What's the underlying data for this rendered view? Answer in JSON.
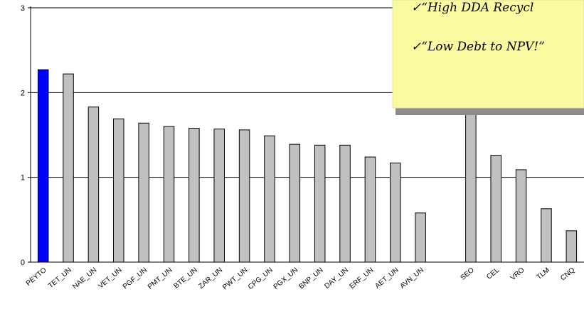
{
  "chart_data": {
    "type": "bar",
    "categories": [
      "PEYTO",
      "TET_UN",
      "NAE_UN",
      "VET_UN",
      "PGF_UN",
      "PMT_UN",
      "BTE_UN",
      "ZAR_UN",
      "PWT_UN",
      "CPG_UN",
      "PGX_UN",
      "BNP_UN",
      "DAY_UN",
      "ERF_UN",
      "AET_UN",
      "AVN_UN",
      "",
      "SEO",
      "CEL",
      "VRO",
      "TLM",
      "CNQ"
    ],
    "values": [
      2.27,
      2.22,
      1.83,
      1.69,
      1.64,
      1.6,
      1.58,
      1.57,
      1.56,
      1.49,
      1.39,
      1.38,
      1.38,
      1.24,
      1.17,
      0.58,
      null,
      1.85,
      1.26,
      1.09,
      0.63,
      0.37
    ],
    "highlight_index": 0,
    "yticks": [
      0,
      1,
      2,
      3
    ],
    "ylim": [
      0,
      3
    ],
    "grid": true,
    "colors": {
      "highlight": "#0000ff",
      "bar": "#c0c0c0"
    }
  },
  "sticky_note": {
    "lines": [
      "✓“High DDA Recycl",
      "✓“Low Debt to NPV!”"
    ],
    "color": "#fafaa0"
  }
}
